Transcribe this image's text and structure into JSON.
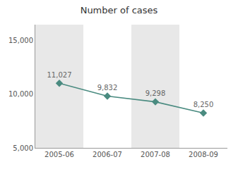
{
  "chart_data": {
    "type": "line",
    "title": "Number of cases",
    "categories": [
      "2005-06",
      "2006-07",
      "2007-08",
      "2008-09"
    ],
    "values": [
      11027,
      9832,
      9298,
      8250
    ],
    "value_labels": [
      "11,027",
      "9,832",
      "9,298",
      "8,250"
    ],
    "data_labels": true,
    "color": "#4a8b80",
    "marker": "diamond",
    "ylim": [
      5000,
      16500
    ],
    "yticks": [
      {
        "value": 5000,
        "label": "5,000"
      },
      {
        "value": 10000,
        "label": "10,000"
      },
      {
        "value": 15000,
        "label": "15,000"
      }
    ],
    "grid": false
  }
}
